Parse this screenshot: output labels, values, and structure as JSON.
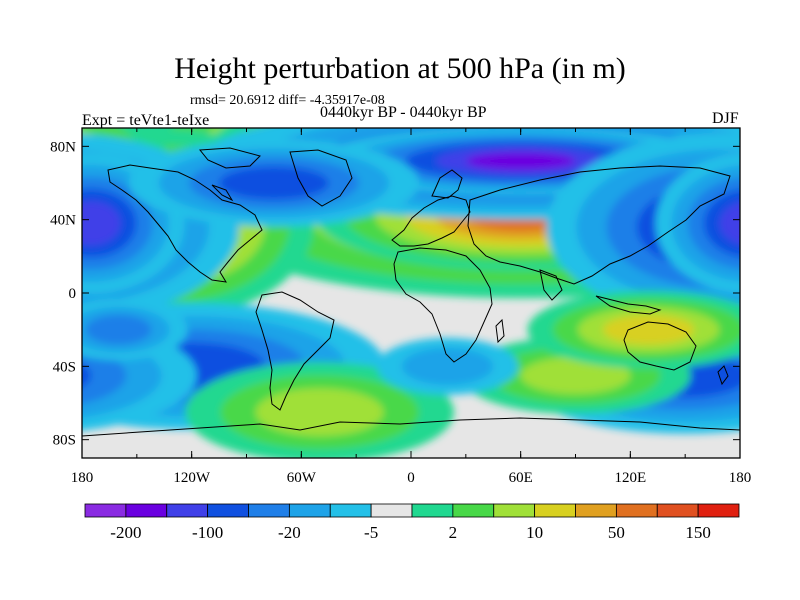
{
  "title": "Height perturbation at 500 hPa (in m)",
  "stats_line": "rmsd= 20.6912 diff= -4.35917e-08",
  "experiment": "Expt = teVte1-teIxe",
  "period": "0440kyr BP - 0440kyr BP",
  "season": "DJF",
  "map": {
    "projection": "cylindrical-equidistant",
    "lon_range": [
      -180,
      180
    ],
    "lat_range": [
      -90,
      90
    ],
    "x_ticks": [
      {
        "value": -180,
        "label": "180"
      },
      {
        "value": -120,
        "label": "120W"
      },
      {
        "value": -60,
        "label": "60W"
      },
      {
        "value": 0,
        "label": "0"
      },
      {
        "value": 60,
        "label": "60E"
      },
      {
        "value": 120,
        "label": "120E"
      },
      {
        "value": 180,
        "label": "180"
      }
    ],
    "y_ticks": [
      {
        "value": 80,
        "label": "80N"
      },
      {
        "value": 40,
        "label": "40N"
      },
      {
        "value": 0,
        "label": "0"
      },
      {
        "value": -40,
        "label": "40S"
      },
      {
        "value": -80,
        "label": "80S"
      }
    ],
    "neutral_color": "#e6e6e6",
    "anomalies": [
      {
        "lon": -20,
        "lat": 72,
        "rlon": 38,
        "rlat": 14,
        "level": 6
      },
      {
        "lon": -20,
        "lat": 72,
        "rlon": 22,
        "rlat": 9,
        "level": 7
      },
      {
        "lon": 60,
        "lat": 42,
        "rlon": 55,
        "rlat": 14,
        "level": 5
      },
      {
        "lon": 60,
        "lat": 42,
        "rlon": 30,
        "rlat": 8,
        "level": 6
      },
      {
        "lon": -130,
        "lat": 38,
        "rlon": 24,
        "rlat": 16,
        "level": 5
      },
      {
        "lon": 170,
        "lat": 65,
        "rlon": 22,
        "rlat": 16,
        "level": 4
      },
      {
        "lon": 60,
        "lat": 72,
        "rlon": 55,
        "rlat": 10,
        "level": -5
      },
      {
        "lon": 60,
        "lat": 72,
        "rlon": 30,
        "rlat": 5,
        "level": -6
      },
      {
        "lon": 170,
        "lat": 36,
        "rlon": 30,
        "rlat": 16,
        "level": -5
      },
      {
        "lon": -175,
        "lat": 38,
        "rlon": 16,
        "rlat": 12,
        "level": -5
      },
      {
        "lon": -75,
        "lat": 60,
        "rlon": 30,
        "rlat": 9,
        "level": -4
      },
      {
        "lon": -120,
        "lat": -40,
        "rlon": 40,
        "rlat": 13,
        "level": -4
      },
      {
        "lon": 150,
        "lat": -45,
        "rlon": 35,
        "rlat": 12,
        "level": -4
      },
      {
        "lon": -160,
        "lat": -20,
        "rlon": 18,
        "rlat": 8,
        "level": -3
      },
      {
        "lon": -50,
        "lat": -65,
        "rlon": 35,
        "rlat": 13,
        "level": 3
      },
      {
        "lon": 90,
        "lat": -45,
        "rlon": 30,
        "rlat": 10,
        "level": 3
      },
      {
        "lon": 20,
        "lat": -40,
        "rlon": 25,
        "rlat": 10,
        "level": -2
      },
      {
        "lon": 130,
        "lat": -20,
        "rlon": 25,
        "rlat": 8,
        "level": 4
      }
    ]
  },
  "colorbar": {
    "colors": [
      "#8a2be2",
      "#6a00e0",
      "#4040e8",
      "#1050e0",
      "#1f7fe8",
      "#1ea3e8",
      "#24c0e8",
      "#e6e6e6",
      "#20d890",
      "#48d848",
      "#a0e038",
      "#d8d020",
      "#e0a020",
      "#e07020",
      "#e05020",
      "#e02010"
    ],
    "labels": [
      {
        "boundary": 1,
        "text": "-200"
      },
      {
        "boundary": 3,
        "text": "-100"
      },
      {
        "boundary": 5,
        "text": "-20"
      },
      {
        "boundary": 7,
        "text": "-5"
      },
      {
        "boundary": 9,
        "text": "2"
      },
      {
        "boundary": 11,
        "text": "10"
      },
      {
        "boundary": 13,
        "text": "50"
      },
      {
        "boundary": 15,
        "text": "150"
      }
    ]
  }
}
